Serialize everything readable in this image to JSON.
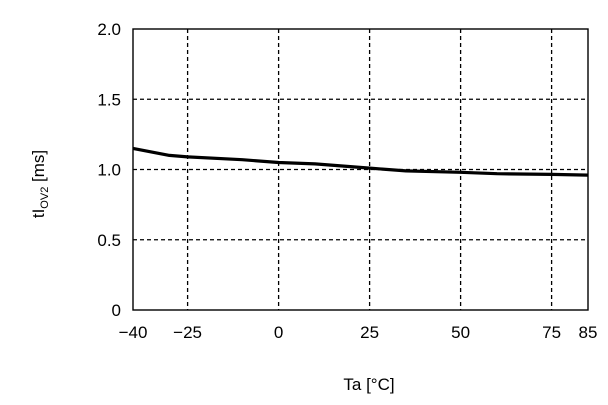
{
  "chart_data": {
    "type": "line",
    "title": "",
    "xlabel": "Ta [°C]",
    "ylabel_main": "tI",
    "ylabel_sub": "OV2",
    "ylabel_unit": " [ms]",
    "xlim": [
      -40,
      85
    ],
    "ylim": [
      0,
      2.0
    ],
    "x_ticks": [
      -40,
      -25,
      0,
      25,
      50,
      75,
      85
    ],
    "x_tick_labels": [
      "−40",
      "−25",
      "0",
      "25",
      "50",
      "75",
      "85"
    ],
    "y_ticks": [
      0,
      0.5,
      1.0,
      1.5,
      2.0
    ],
    "y_tick_labels": [
      "0",
      "0.5",
      "1.0",
      "1.5",
      "2.0"
    ],
    "grid": true,
    "grid_style": "dashed",
    "series": [
      {
        "x": [
          -40,
          -30,
          -25,
          -10,
          0,
          10,
          25,
          35,
          50,
          60,
          75,
          85
        ],
        "values": [
          1.15,
          1.1,
          1.09,
          1.07,
          1.05,
          1.04,
          1.01,
          0.99,
          0.98,
          0.97,
          0.965,
          0.96
        ]
      }
    ],
    "line_color": "#000000"
  }
}
